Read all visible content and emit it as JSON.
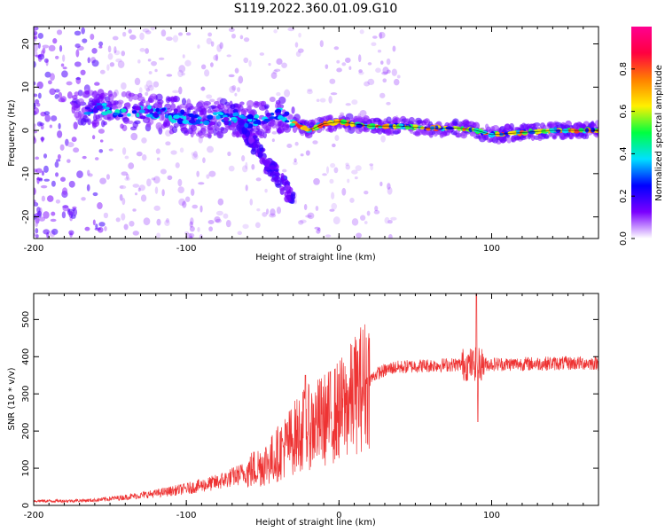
{
  "title": "S119.2022.360.01.09.G10",
  "chart_data": [
    {
      "type": "heatmap",
      "xlabel": "Height of straight line (km)",
      "ylabel": "Frequency (Hz)",
      "xlim": [
        -200,
        170
      ],
      "ylim": [
        -25,
        24
      ],
      "xticks": [
        -200,
        -100,
        0,
        100
      ],
      "yticks": [
        -20,
        -10,
        0,
        10,
        20
      ],
      "ridge": [
        {
          "x": -160,
          "y": 5
        },
        {
          "x": -140,
          "y": 4.5
        },
        {
          "x": -120,
          "y": 4
        },
        {
          "x": -100,
          "y": 3
        },
        {
          "x": -85,
          "y": 2.5
        },
        {
          "x": -70,
          "y": 3
        },
        {
          "x": -55,
          "y": 2
        },
        {
          "x": -40,
          "y": 4
        },
        {
          "x": -30,
          "y": 2
        },
        {
          "x": -20,
          "y": 0
        },
        {
          "x": -10,
          "y": 1.5
        },
        {
          "x": 0,
          "y": 2
        },
        {
          "x": 20,
          "y": 1
        },
        {
          "x": 40,
          "y": 1
        },
        {
          "x": 60,
          "y": 0.5
        },
        {
          "x": 80,
          "y": 0.5
        },
        {
          "x": 90,
          "y": 0
        },
        {
          "x": 100,
          "y": -1
        },
        {
          "x": 120,
          "y": -0.5
        },
        {
          "x": 140,
          "y": 0
        },
        {
          "x": 170,
          "y": 0
        }
      ],
      "colorbar": {
        "label": "Normalized spectral amplitude",
        "ticks": [
          0.0,
          0.2,
          0.4,
          0.6,
          0.8
        ],
        "range": [
          0,
          1
        ],
        "colors": [
          "#ffffff",
          "#7a00ff",
          "#0000ff",
          "#00e0ff",
          "#00ff40",
          "#fff000",
          "#ff8000",
          "#ff0040",
          "#ff0090"
        ]
      }
    },
    {
      "type": "line",
      "xlabel": "Height of straight line (km)",
      "ylabel": "SNR (10 * v/v)",
      "xlim": [
        -200,
        170
      ],
      "ylim": [
        0,
        570
      ],
      "xticks": [
        -200,
        -100,
        0,
        100
      ],
      "yticks": [
        0,
        100,
        200,
        300,
        400,
        500
      ],
      "color": "#ee3333",
      "trend": [
        {
          "x": -200,
          "y": 12
        },
        {
          "x": -180,
          "y": 12
        },
        {
          "x": -160,
          "y": 14
        },
        {
          "x": -140,
          "y": 22
        },
        {
          "x": -120,
          "y": 32
        },
        {
          "x": -100,
          "y": 45
        },
        {
          "x": -80,
          "y": 62
        },
        {
          "x": -60,
          "y": 90
        },
        {
          "x": -45,
          "y": 120
        },
        {
          "x": -35,
          "y": 160
        },
        {
          "x": -25,
          "y": 200
        },
        {
          "x": -15,
          "y": 220
        },
        {
          "x": -5,
          "y": 240
        },
        {
          "x": 5,
          "y": 270
        },
        {
          "x": 15,
          "y": 320
        },
        {
          "x": 25,
          "y": 355
        },
        {
          "x": 35,
          "y": 370
        },
        {
          "x": 50,
          "y": 375
        },
        {
          "x": 70,
          "y": 378
        },
        {
          "x": 90,
          "y": 380
        },
        {
          "x": 110,
          "y": 380
        },
        {
          "x": 140,
          "y": 382
        },
        {
          "x": 170,
          "y": 383
        }
      ],
      "spikes": [
        {
          "x": -22,
          "y": 350
        },
        {
          "x": 10,
          "y": 425
        },
        {
          "x": 90,
          "y": 570
        },
        {
          "x": 91,
          "y": 225
        }
      ]
    }
  ]
}
